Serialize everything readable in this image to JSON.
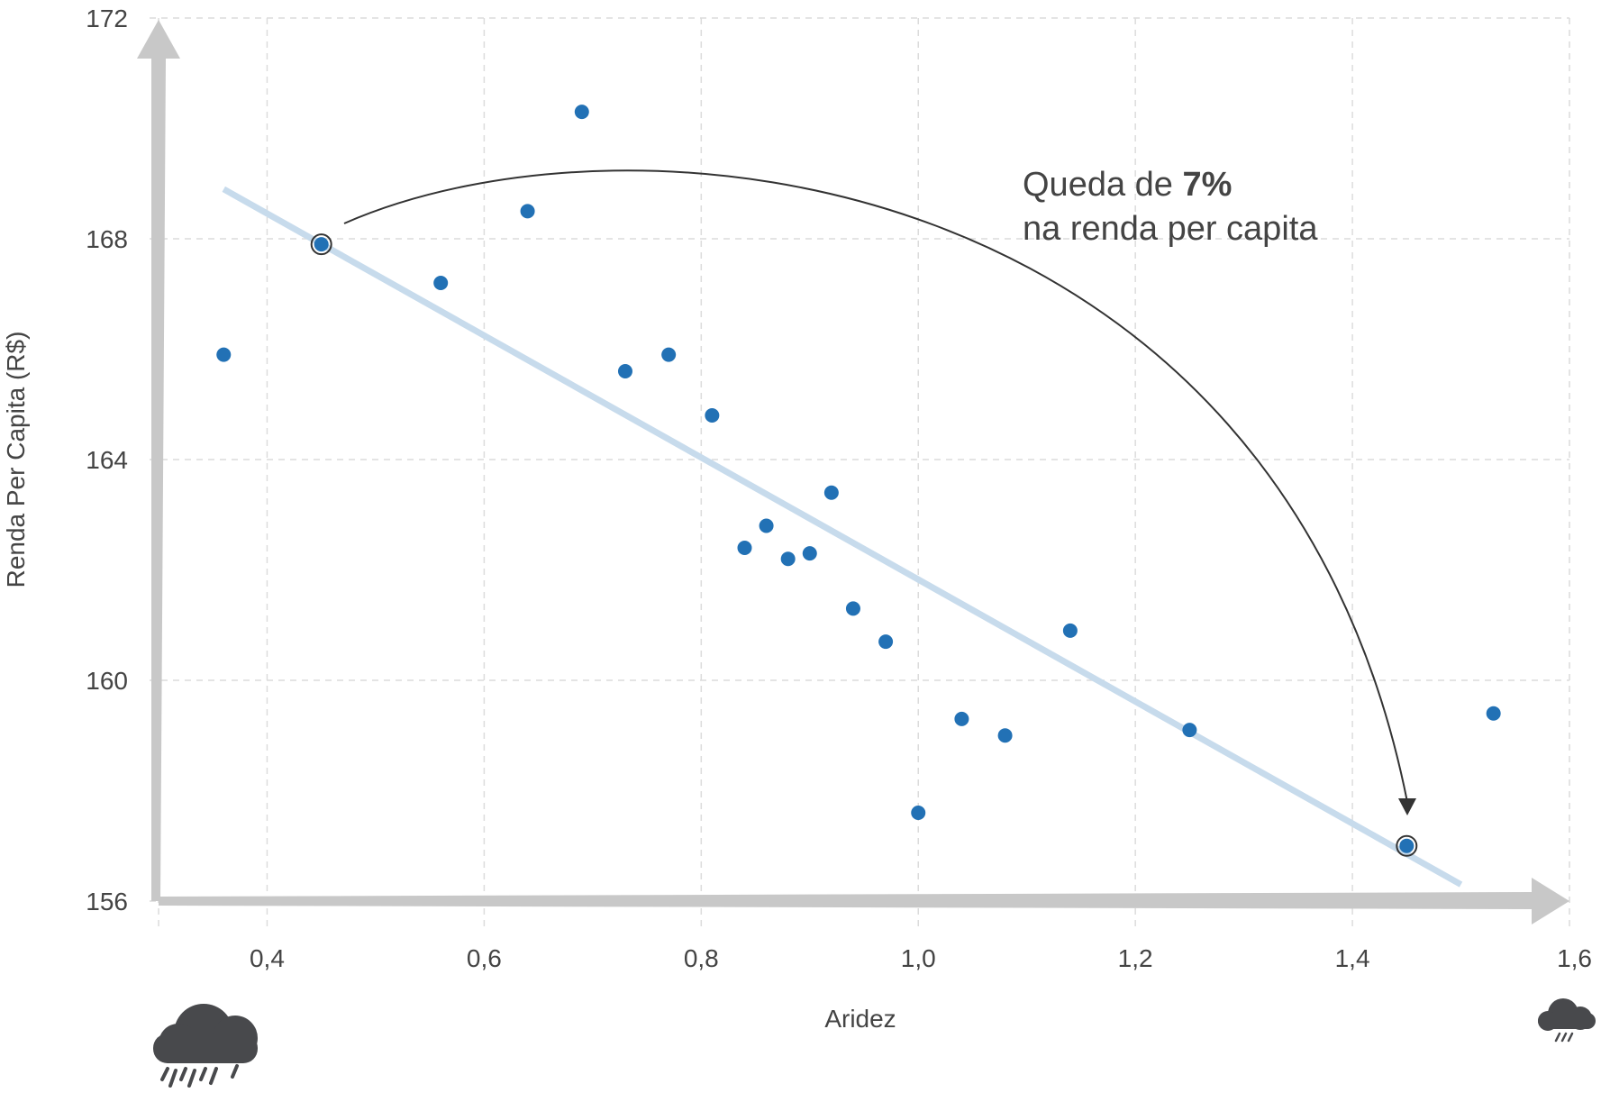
{
  "chart_data": {
    "type": "scatter",
    "xlabel": "Aridez",
    "ylabel": "Renda Per Capita (R$)",
    "xlim": [
      0.3,
      1.6
    ],
    "ylim": [
      156,
      172
    ],
    "x_ticks": [
      "0,4",
      "0,6",
      "0,8",
      "1,0",
      "1,2",
      "1,4",
      "1,6"
    ],
    "y_ticks": [
      "156",
      "160",
      "164",
      "168",
      "172"
    ],
    "grid": true,
    "series": [
      {
        "points": [
          {
            "x": 0.36,
            "y": 165.9
          },
          {
            "x": 0.45,
            "y": 167.9
          },
          {
            "x": 0.56,
            "y": 167.2
          },
          {
            "x": 0.64,
            "y": 168.5
          },
          {
            "x": 0.69,
            "y": 170.3
          },
          {
            "x": 0.73,
            "y": 165.6
          },
          {
            "x": 0.77,
            "y": 165.9
          },
          {
            "x": 0.81,
            "y": 164.8
          },
          {
            "x": 0.84,
            "y": 162.4
          },
          {
            "x": 0.86,
            "y": 162.8
          },
          {
            "x": 0.88,
            "y": 162.2
          },
          {
            "x": 0.9,
            "y": 162.3
          },
          {
            "x": 0.92,
            "y": 163.4
          },
          {
            "x": 0.94,
            "y": 161.3
          },
          {
            "x": 0.97,
            "y": 160.7
          },
          {
            "x": 1.0,
            "y": 157.6
          },
          {
            "x": 1.04,
            "y": 159.3
          },
          {
            "x": 1.08,
            "y": 159.0
          },
          {
            "x": 1.14,
            "y": 160.9
          },
          {
            "x": 1.25,
            "y": 159.1
          },
          {
            "x": 1.45,
            "y": 157.0
          },
          {
            "x": 1.53,
            "y": 159.4
          }
        ]
      }
    ],
    "trend_line": {
      "x": [
        0.36,
        1.5
      ],
      "y": [
        168.9,
        156.3
      ]
    },
    "highlighted_points": [
      {
        "x": 0.45,
        "y": 167.9
      },
      {
        "x": 1.45,
        "y": 157.0
      }
    ],
    "annotation": {
      "prefix": "Queda de ",
      "bold": "7%",
      "line2": "na renda per capita"
    }
  },
  "icons": {
    "left": "heavy-rain-cloud-icon",
    "right": "light-rain-cloud-icon"
  },
  "colors": {
    "point": "#2271b5",
    "trend": "#c7dbec",
    "axis_arrow": "#c8c8c8",
    "icon": "#48494c"
  }
}
